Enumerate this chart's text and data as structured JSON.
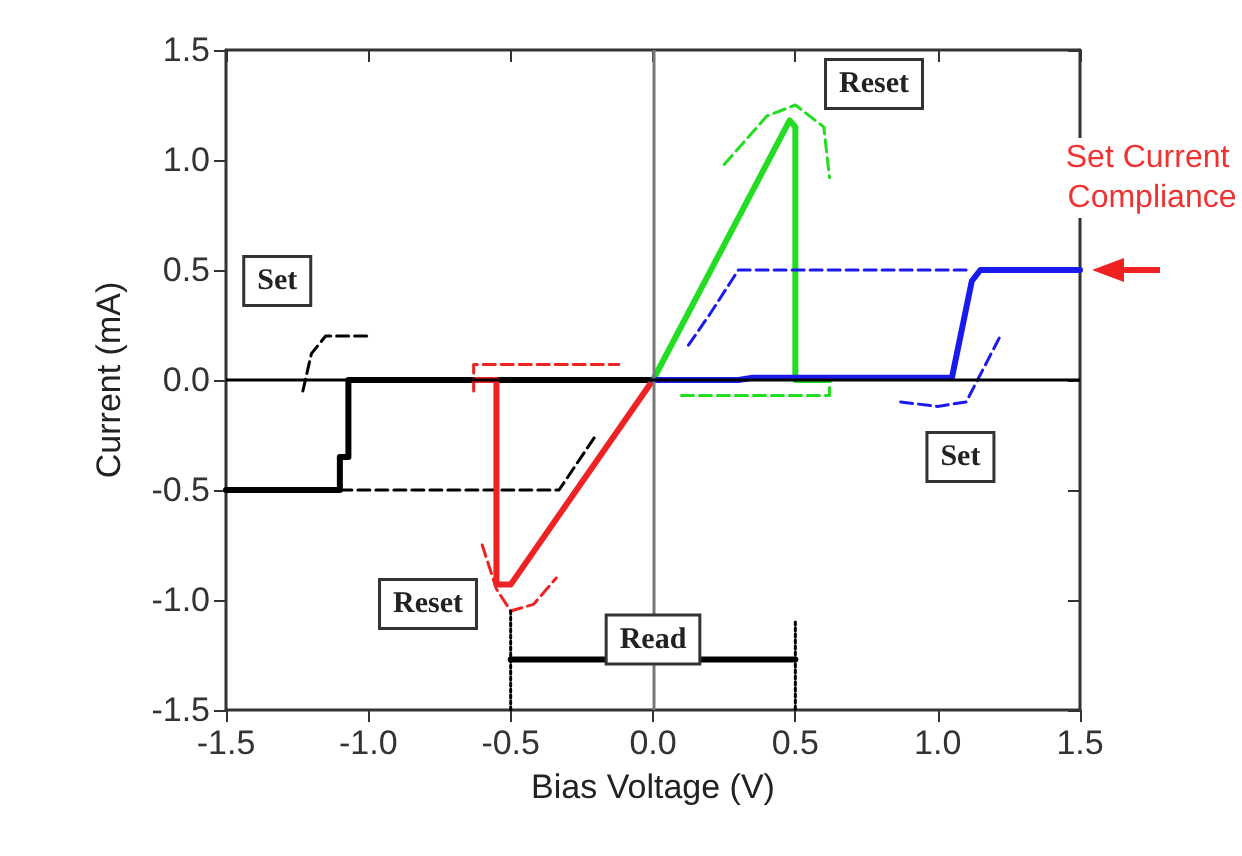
{
  "chart_data": {
    "type": "line",
    "xlabel": "Bias Voltage (V)",
    "ylabel": "Current (mA)",
    "xlim": [
      -1.5,
      1.5
    ],
    "ylim": [
      -1.5,
      1.5
    ],
    "xticks": [
      -1.5,
      {
        "value": -1,
        "label": "-1.0"
      },
      -0.5,
      {
        "value": 0,
        "label": "0.0"
      },
      0.5,
      {
        "value": 1,
        "label": "1.0"
      },
      1.5
    ],
    "yticks": [
      -1.5,
      {
        "value": -1,
        "label": "-1.0"
      },
      -0.5,
      {
        "value": 0,
        "label": "0.0"
      },
      0.5,
      {
        "value": 1,
        "label": "1.0"
      },
      1.5
    ],
    "grid": false,
    "marker": "none",
    "series": [
      {
        "color": "#000000",
        "line_style": "solid",
        "x": [
          0,
          -1.07,
          -1.07,
          -1.1,
          -1.1,
          -1.5
        ],
        "values": [
          0,
          0,
          -0.35,
          -0.35,
          -0.5,
          -0.5
        ]
      },
      {
        "color": "#000000",
        "line_style": "dashed",
        "x": [
          -1.1,
          -0.33,
          -0.2
        ],
        "values": [
          -0.5,
          -0.5,
          -0.25
        ]
      },
      {
        "color": "#000000",
        "line_style": "dashed",
        "x": [
          -1.23,
          -1.2,
          -1.15,
          -1.0
        ],
        "values": [
          -0.05,
          0.12,
          0.2,
          0.2
        ]
      },
      {
        "color": "#ee2222",
        "line_style": "solid",
        "x": [
          0,
          -0.5,
          -0.55,
          -0.55,
          -0.62
        ],
        "values": [
          0,
          -0.93,
          -0.93,
          0,
          0
        ]
      },
      {
        "color": "#ee2222",
        "line_style": "dashed",
        "x": [
          -0.63,
          -0.63,
          -0.12
        ],
        "values": [
          -0.05,
          0.07,
          0.07
        ]
      },
      {
        "color": "#ee2222",
        "line_style": "dashed",
        "x": [
          -0.6,
          -0.55,
          -0.5,
          -0.42,
          -0.34
        ],
        "values": [
          -0.75,
          -0.95,
          -1.05,
          -1.02,
          -0.9
        ]
      },
      {
        "color": "#22dd22",
        "line_style": "solid",
        "x": [
          0,
          0.48,
          0.5,
          0.5,
          0.62
        ],
        "values": [
          0,
          1.18,
          1.15,
          0,
          0
        ]
      },
      {
        "color": "#22dd22",
        "line_style": "dashed",
        "x": [
          0.25,
          0.4,
          0.5,
          0.6,
          0.62
        ],
        "values": [
          0.98,
          1.2,
          1.25,
          1.15,
          0.92
        ]
      },
      {
        "color": "#22dd22",
        "line_style": "dashed",
        "x": [
          0.1,
          0.62,
          0.62
        ],
        "values": [
          -0.07,
          -0.07,
          0
        ]
      },
      {
        "color": "#1a1aee",
        "line_style": "solid",
        "x": [
          0,
          0.3,
          0.35,
          1.05,
          1.12,
          1.15,
          1.5
        ],
        "values": [
          0,
          0,
          0.01,
          0.01,
          0.45,
          0.5,
          0.5
        ]
      },
      {
        "color": "#1a1aee",
        "line_style": "dashed",
        "x": [
          1.1,
          0.3,
          0.2,
          0.12
        ],
        "values": [
          0.5,
          0.5,
          0.3,
          0.15
        ]
      },
      {
        "color": "#1a1aee",
        "line_style": "dashed",
        "x": [
          0.87,
          1.0,
          1.1,
          1.2,
          1.22
        ],
        "values": [
          -0.1,
          -0.12,
          -0.1,
          0.15,
          0.2
        ]
      },
      {
        "color": "#000000",
        "line_style": "solid",
        "x": [
          -0.5,
          0.5
        ],
        "values": [
          -1.27,
          -1.27
        ]
      },
      {
        "color": "#000000",
        "line_style": "dotted",
        "x": [
          -0.5,
          -0.5
        ],
        "values": [
          -1.05,
          -1.5
        ]
      },
      {
        "color": "#000000",
        "line_style": "dotted",
        "x": [
          0.5,
          0.5
        ],
        "values": [
          -1.1,
          -1.5
        ]
      }
    ],
    "ref_lines": [
      {
        "axis": "x",
        "value": 0,
        "color": "#777777"
      },
      {
        "axis": "y",
        "value": 0,
        "color": "#000000"
      }
    ],
    "annotations": [
      {
        "text": "Set",
        "x": -1.32,
        "y": 0.45
      },
      "Reset",
      {
        "text": "Set",
        "x": 1.08,
        "y": -0.35
      },
      "Reset",
      {
        "text": "Read",
        "x": 0,
        "y": -1.18
      },
      {
        "text": "Set Current Compliance",
        "x": 1.5,
        "y": 0.5
      }
    ]
  }
}
